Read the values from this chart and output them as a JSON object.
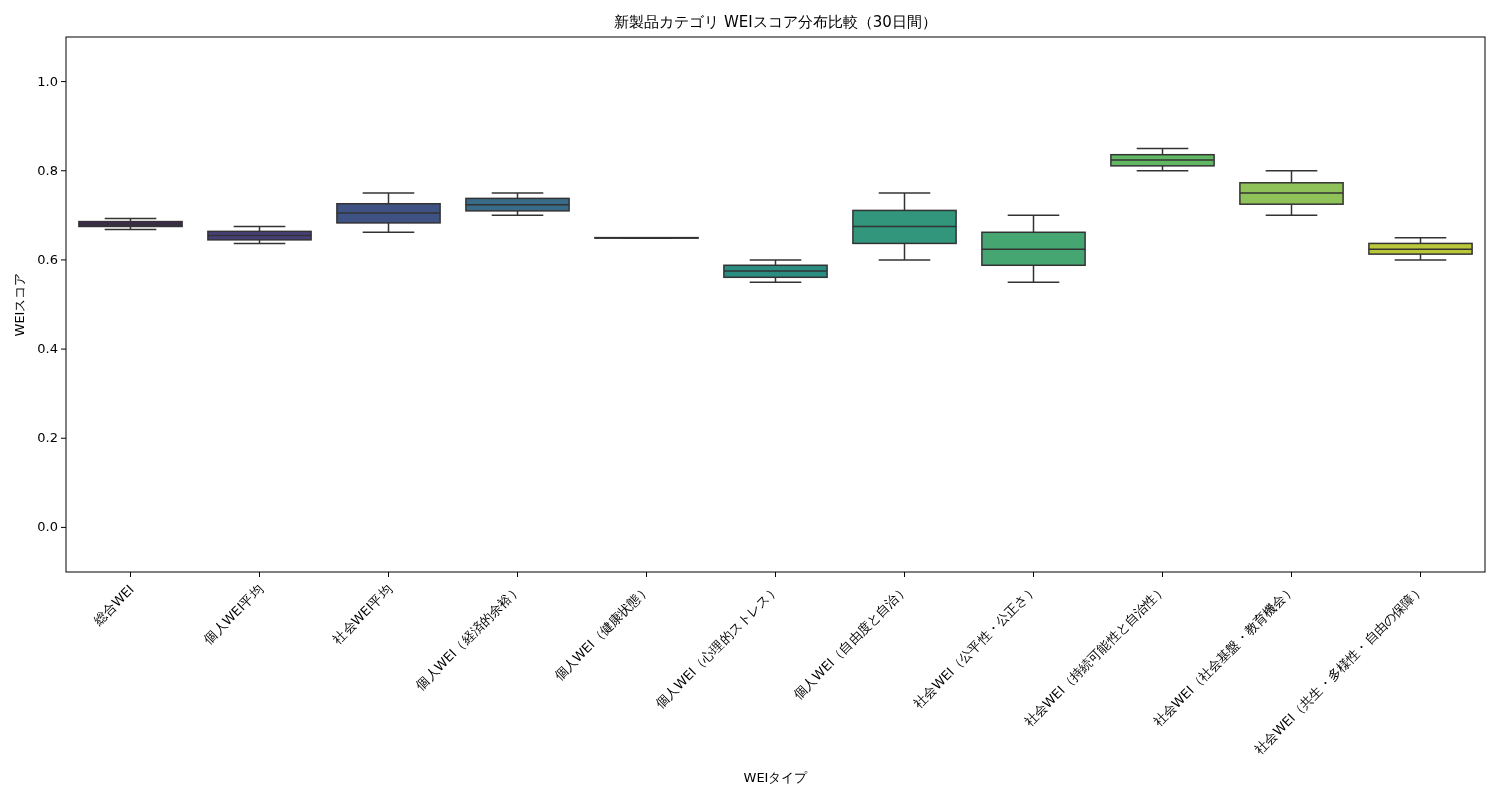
{
  "chart_data": {
    "type": "box",
    "title": "新製品カテゴリ WEIスコア分布比較（30日間）",
    "xlabel": "WEIタイプ",
    "ylabel": "WEIスコア",
    "categories": [
      "総合WEI",
      "個人WEI平均",
      "社会WEI平均",
      "個人WEI（経済的余裕）",
      "個人WEI（健康状態）",
      "個人WEI（心理的ストレス）",
      "個人WEI（自由度と自治）",
      "社会WEI（公平性・公正さ）",
      "社会WEI（持続可能性と自治性）",
      "社会WEI（社会基盤・教育機会）",
      "社会WEI（共生・多様性・自由の保障）"
    ],
    "colors": [
      "#45275a",
      "#463f7a",
      "#3e5383",
      "#386b87",
      "#2f7e86",
      "#2b8c82",
      "#31967c",
      "#45a672",
      "#62b765",
      "#8fc258",
      "#bac73a"
    ],
    "boxes": [
      {
        "low": 0.668,
        "q1": 0.675,
        "median": 0.68,
        "q3": 0.686,
        "high": 0.693
      },
      {
        "low": 0.637,
        "q1": 0.645,
        "median": 0.655,
        "q3": 0.664,
        "high": 0.675
      },
      {
        "low": 0.662,
        "q1": 0.683,
        "median": 0.705,
        "q3": 0.726,
        "high": 0.75
      },
      {
        "low": 0.7,
        "q1": 0.71,
        "median": 0.724,
        "q3": 0.738,
        "high": 0.75
      },
      {
        "low": 0.65,
        "q1": 0.65,
        "median": 0.65,
        "q3": 0.65,
        "high": 0.65
      },
      {
        "low": 0.55,
        "q1": 0.561,
        "median": 0.575,
        "q3": 0.588,
        "high": 0.6
      },
      {
        "low": 0.6,
        "q1": 0.637,
        "median": 0.675,
        "q3": 0.711,
        "high": 0.75
      },
      {
        "low": 0.55,
        "q1": 0.588,
        "median": 0.624,
        "q3": 0.662,
        "high": 0.7
      },
      {
        "low": 0.8,
        "q1": 0.811,
        "median": 0.824,
        "q3": 0.836,
        "high": 0.85
      },
      {
        "low": 0.7,
        "q1": 0.725,
        "median": 0.75,
        "q3": 0.773,
        "high": 0.8
      },
      {
        "low": 0.6,
        "q1": 0.613,
        "median": 0.624,
        "q3": 0.637,
        "high": 0.65
      }
    ],
    "ylim": [
      -0.1,
      1.1
    ],
    "yticks": [
      {
        "value": 0,
        "label": "0.0"
      },
      0.2,
      0.4,
      0.6,
      0.8,
      {
        "value": 1,
        "label": "1.0"
      }
    ],
    "grid": false
  }
}
